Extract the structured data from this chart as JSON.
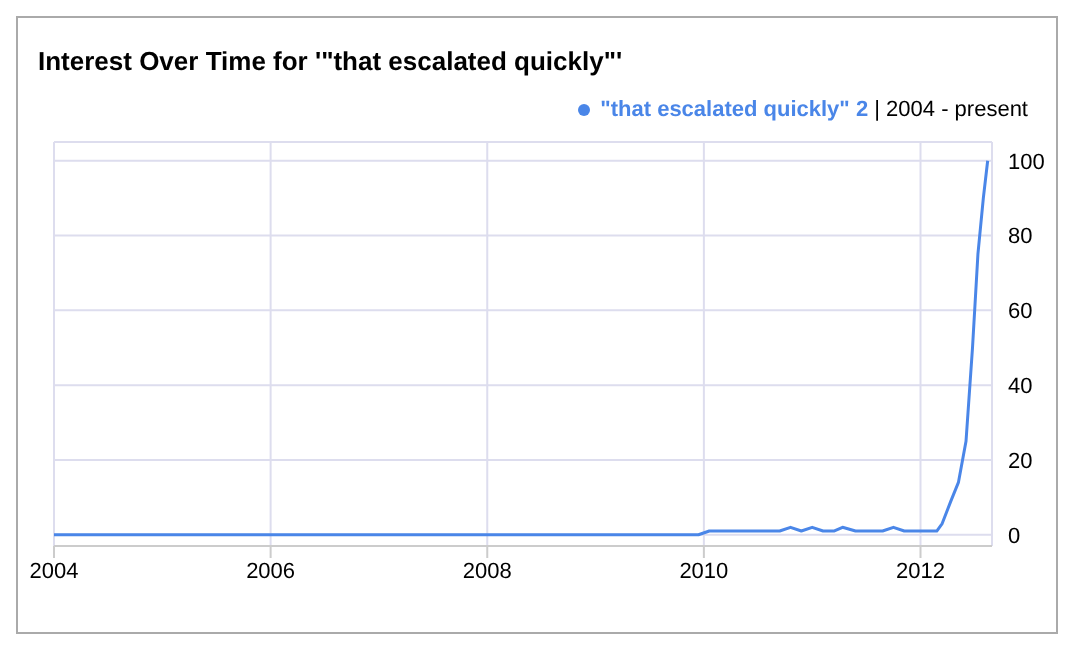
{
  "chart_data": {
    "type": "line",
    "title": "Interest Over Time for '\"that escalated quickly\"'",
    "subtitle": "| 2004 - present",
    "x": [
      2004,
      2006,
      2008,
      2009.95,
      2010.05,
      2010.7,
      2010.8,
      2010.9,
      2011.0,
      2011.1,
      2011.2,
      2011.28,
      2011.4,
      2011.65,
      2011.75,
      2011.85,
      2012.0,
      2012.15,
      2012.2,
      2012.28,
      2012.35,
      2012.42,
      2012.48,
      2012.53,
      2012.58,
      2012.62
    ],
    "series": [
      {
        "name": "\"that escalated quickly\" 2",
        "color": "#4a86e8",
        "values": [
          0,
          0,
          0,
          0,
          1,
          1,
          2,
          1,
          2,
          1,
          1,
          2,
          1,
          1,
          2,
          1,
          1,
          1,
          3,
          9,
          14,
          25,
          50,
          75,
          90,
          100
        ]
      }
    ],
    "xlim": [
      2004,
      2012.66
    ],
    "xticks": [
      2004,
      2006,
      2008,
      2010,
      2012
    ],
    "ylim": [
      -3,
      105
    ],
    "yticks": [
      0,
      20,
      40,
      60,
      80,
      100
    ],
    "grid": true,
    "legend": "top right",
    "marker": "none",
    "line_style": "solid"
  }
}
